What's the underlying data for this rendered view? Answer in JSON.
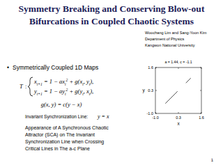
{
  "header": {
    "title_lines": [
      "Symmetry Breaking and Conserving Blow-out",
      "Bifurcations in Coupled Chaotic Systems"
    ]
  },
  "authors": {
    "lines": [
      "Woochang Lim and Sang-Yoon Kim",
      "Department of Physics",
      "Kangwon National University"
    ]
  },
  "section": {
    "bullet": "•",
    "heading": "Symmetrically Coupled 1D Maps"
  },
  "equation": {
    "map": "T",
    "map_sep": ":",
    "lines": [
      [
        {
          "t": "x"
        },
        {
          "sub": "t+1"
        },
        {
          "t": " = 1 − ax"
        },
        {
          "sub": "t"
        },
        {
          "sup": "2"
        },
        {
          "t": " + g(x"
        },
        {
          "sub": "t"
        },
        {
          "t": ", y"
        },
        {
          "sub": "t"
        },
        {
          "t": "),"
        }
      ],
      [
        {
          "t": "y"
        },
        {
          "sub": "t+1"
        },
        {
          "t": " = 1 − ay"
        },
        {
          "sub": "t"
        },
        {
          "sup": "2"
        },
        {
          "t": " + g(y"
        },
        {
          "sub": "t"
        },
        {
          "t": ", x"
        },
        {
          "sub": "t"
        },
        {
          "t": "),"
        }
      ]
    ],
    "coupling": "g(x, y) = c(y − x)"
  },
  "sync_line": {
    "label": "Invariant Synchronization Line:",
    "equation": "y = x"
  },
  "paragraph": {
    "lines": [
      "Appearance of A Synchronous Chaotic",
      "Attractor (SCA) on The Invariant",
      "Synchronization Line when Crossing",
      "Critical Lines in The a-c Plane"
    ]
  },
  "page_number": 1,
  "chart_data": {
    "type": "line",
    "title": "a = 1.44, c = -1.1",
    "x_label": "x",
    "y_label": "y",
    "x": [
      -0.44,
      0.251,
      0.5,
      0.721,
      1.0
    ],
    "values": [
      -0.44,
      0.251,
      null,
      0.721,
      1.0
    ],
    "color": "#444444",
    "xlim": [
      -1.0,
      1.6
    ],
    "ylim": [
      -1.0,
      1.6
    ],
    "xticks": [
      {
        "value": -1.0,
        "label": "-1.0"
      },
      0.3,
      1.6
    ],
    "yticks": [
      {
        "value": -1.0,
        "label": "-1.0"
      },
      0.3,
      1.6
    ]
  }
}
